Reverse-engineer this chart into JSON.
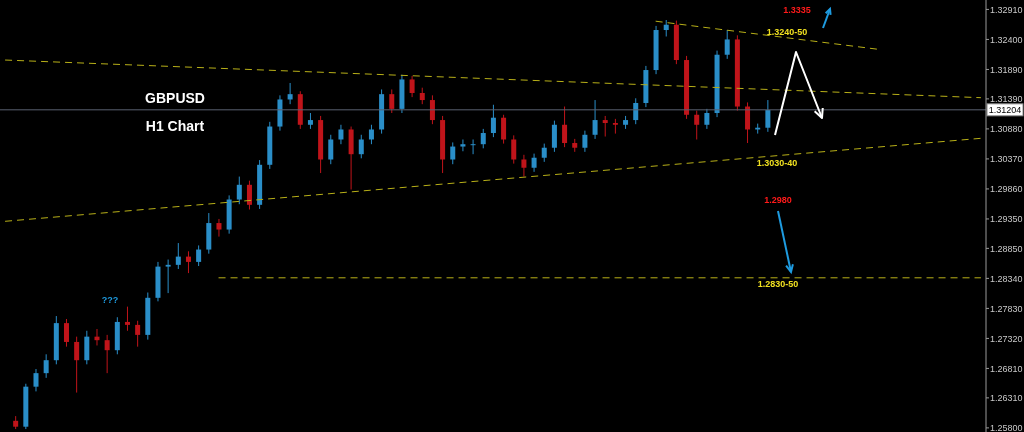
{
  "chart_data": {
    "type": "candlestick",
    "title": "GBPUSD",
    "subtitle": "H1 Chart",
    "categories": [
      null,
      null,
      null,
      null,
      null,
      null,
      null,
      null,
      null,
      null,
      null,
      null,
      null,
      null,
      null,
      null,
      null,
      null,
      null,
      null,
      null,
      null,
      null,
      null,
      null,
      null,
      null,
      null,
      null,
      null,
      null,
      null,
      null,
      null,
      null,
      null,
      null,
      null,
      null,
      null,
      null,
      null,
      null,
      null,
      null,
      null,
      null,
      null,
      null,
      null,
      null,
      null,
      null,
      null,
      null,
      null,
      null,
      null,
      null,
      null,
      null,
      null,
      null,
      null,
      null,
      null,
      null,
      null,
      null,
      null,
      null,
      null,
      null,
      null,
      null,
      null,
      null,
      null,
      null,
      null,
      null,
      null,
      null,
      null,
      null,
      null,
      null,
      null,
      null,
      null,
      null,
      null,
      null,
      null,
      null,
      null,
      null
    ],
    "ohlc": [
      null,
      [
        1.2592,
        1.26,
        1.2578,
        1.2582
      ],
      [
        1.2582,
        1.2655,
        1.2578,
        1.265
      ],
      [
        1.265,
        1.268,
        1.2642,
        1.2673
      ],
      [
        1.2673,
        1.2705,
        1.2665,
        1.2695
      ],
      [
        1.2695,
        1.277,
        1.2688,
        1.2758
      ],
      [
        1.2758,
        1.2765,
        1.2718,
        1.2726
      ],
      [
        1.2726,
        1.2735,
        1.264,
        1.2695
      ],
      [
        1.2695,
        1.2745,
        1.2688,
        1.2735
      ],
      [
        1.2735,
        1.2748,
        1.272,
        1.2729
      ],
      [
        1.2729,
        1.2738,
        1.2673,
        1.2712
      ],
      [
        1.2712,
        1.2768,
        1.2705,
        1.276
      ],
      [
        1.276,
        1.2786,
        1.2745,
        1.2755
      ],
      [
        1.2755,
        1.2762,
        1.2718,
        1.2738
      ],
      [
        1.2738,
        1.281,
        1.273,
        1.2801
      ],
      [
        1.2801,
        1.2862,
        1.2795,
        1.2854
      ],
      [
        1.2854,
        1.2866,
        1.2809,
        1.2857
      ],
      [
        1.2857,
        1.2894,
        1.285,
        1.2871
      ],
      [
        1.2871,
        1.288,
        1.2843,
        1.2862
      ],
      [
        1.2862,
        1.289,
        1.2855,
        1.2883
      ],
      [
        1.2883,
        1.2945,
        1.2876,
        1.2928
      ],
      [
        1.2928,
        1.2935,
        1.2905,
        1.2917
      ],
      [
        1.2917,
        1.2975,
        1.291,
        1.2968
      ],
      [
        1.2968,
        1.3007,
        1.296,
        1.2993
      ],
      [
        1.2993,
        1.3,
        1.2951,
        1.2959
      ],
      [
        1.2959,
        1.3035,
        1.2952,
        1.3027
      ],
      [
        1.3027,
        1.31,
        1.302,
        1.3092
      ],
      [
        1.3092,
        1.3145,
        1.3085,
        1.3138
      ],
      [
        1.3138,
        1.3166,
        1.313,
        1.3147
      ],
      [
        1.3147,
        1.3152,
        1.3088,
        1.3095
      ],
      [
        1.3095,
        1.3115,
        1.3088,
        1.3103
      ],
      [
        1.3103,
        1.311,
        1.3013,
        1.3036
      ],
      [
        1.3036,
        1.3078,
        1.3028,
        1.307
      ],
      [
        1.307,
        1.3095,
        1.3062,
        1.3087
      ],
      [
        1.3087,
        1.3092,
        1.2985,
        1.3045
      ],
      [
        1.3045,
        1.3078,
        1.3038,
        1.307
      ],
      [
        1.307,
        1.3095,
        1.3062,
        1.3087
      ],
      [
        1.3087,
        1.3155,
        1.308,
        1.3147
      ],
      [
        1.3147,
        1.3155,
        1.3115,
        1.3122
      ],
      [
        1.3122,
        1.318,
        1.3115,
        1.3172
      ],
      [
        1.3172,
        1.3178,
        1.3142,
        1.3149
      ],
      [
        1.3149,
        1.3158,
        1.313,
        1.3137
      ],
      [
        1.3137,
        1.3145,
        1.3096,
        1.3103
      ],
      [
        1.3103,
        1.311,
        1.3013,
        1.3036
      ],
      [
        1.3036,
        1.3065,
        1.3028,
        1.3058
      ],
      [
        1.3058,
        1.307,
        1.305,
        1.3062
      ],
      [
        1.3062,
        1.307,
        1.3045,
        1.3062
      ],
      [
        1.3062,
        1.3088,
        1.3055,
        1.3081
      ],
      [
        1.3081,
        1.3129,
        1.3074,
        1.3107
      ],
      [
        1.3107,
        1.3112,
        1.3063,
        1.307
      ],
      [
        1.307,
        1.3077,
        1.3029,
        1.3036
      ],
      [
        1.3036,
        1.3044,
        1.3007,
        1.3022
      ],
      [
        1.3022,
        1.3046,
        1.3015,
        1.3039
      ],
      [
        1.3039,
        1.3063,
        1.3032,
        1.3056
      ],
      [
        1.3056,
        1.3102,
        1.3049,
        1.3095
      ],
      [
        1.3095,
        1.3126,
        1.3057,
        1.3064
      ],
      [
        1.3064,
        1.3071,
        1.3049,
        1.3056
      ],
      [
        1.3056,
        1.3085,
        1.3049,
        1.3078
      ],
      [
        1.3078,
        1.3137,
        1.3071,
        1.3103
      ],
      [
        1.3103,
        1.311,
        1.3075,
        1.3098
      ],
      [
        1.3098,
        1.3105,
        1.308,
        1.3095
      ],
      [
        1.3095,
        1.311,
        1.3088,
        1.3103
      ],
      [
        1.3103,
        1.314,
        1.3096,
        1.3132
      ],
      [
        1.3132,
        1.3195,
        1.3125,
        1.3188
      ],
      [
        1.3188,
        1.3263,
        1.3181,
        1.3256
      ],
      [
        1.3256,
        1.3273,
        1.3245,
        1.3265
      ],
      [
        1.3265,
        1.3272,
        1.3198,
        1.3205
      ],
      [
        1.3205,
        1.3212,
        1.3105,
        1.3112
      ],
      [
        1.3112,
        1.3119,
        1.307,
        1.3095
      ],
      [
        1.3095,
        1.3122,
        1.3088,
        1.3115
      ],
      [
        1.3115,
        1.3221,
        1.3108,
        1.3214
      ],
      [
        1.3214,
        1.3256,
        1.3207,
        1.324
      ],
      [
        1.324,
        1.3247,
        1.3119,
        1.3126
      ],
      [
        1.3126,
        1.3133,
        1.3064,
        1.3087
      ],
      [
        1.3087,
        1.3097,
        1.308,
        1.309
      ],
      [
        1.309,
        1.3137,
        1.3083,
        1.312
      ],
      null,
      null,
      null,
      null,
      null,
      null,
      null,
      null,
      null,
      null,
      null,
      null,
      null,
      null,
      null,
      null,
      null,
      null,
      null,
      null,
      null
    ],
    "colors": [
      null,
      "#c0141a",
      "#2a8ec8",
      "#2a8ec8",
      "#2a8ec8",
      "#2a8ec8",
      "#c0141a",
      "#c0141a",
      "#2a8ec8",
      "#c0141a",
      "#c0141a",
      "#2a8ec8",
      "#c0141a",
      "#c0141a",
      "#2a8ec8",
      "#2a8ec8",
      "#2a8ec8",
      "#2a8ec8",
      "#c0141a",
      "#2a8ec8",
      "#2a8ec8",
      "#c0141a",
      "#2a8ec8",
      "#2a8ec8",
      "#c0141a",
      "#2a8ec8",
      "#2a8ec8",
      "#2a8ec8",
      "#2a8ec8",
      "#c0141a",
      "#2a8ec8",
      "#c0141a",
      "#2a8ec8",
      "#2a8ec8",
      "#c0141a",
      "#2a8ec8",
      "#2a8ec8",
      "#2a8ec8",
      "#c0141a",
      "#2a8ec8",
      "#c0141a",
      "#c0141a",
      "#c0141a",
      "#c0141a",
      "#2a8ec8",
      "#2a8ec8",
      "#2a8ec8",
      "#2a8ec8",
      "#2a8ec8",
      "#c0141a",
      "#c0141a",
      "#c0141a",
      "#2a8ec8",
      "#2a8ec8",
      "#2a8ec8",
      "#c0141a",
      "#c0141a",
      "#2a8ec8",
      "#2a8ec8",
      "#c0141a",
      "#c0141a",
      "#2a8ec8",
      "#2a8ec8",
      "#2a8ec8",
      "#2a8ec8",
      "#2a8ec8",
      "#c0141a",
      "#c0141a",
      "#c0141a",
      "#2a8ec8",
      "#2a8ec8",
      "#2a8ec8",
      "#c0141a",
      "#c0141a",
      "#2a8ec8",
      "#2a8ec8",
      null,
      null,
      null,
      null,
      null,
      null,
      null,
      null,
      null,
      null,
      null,
      null,
      null,
      null,
      null,
      null,
      null,
      null,
      null,
      null,
      null
    ],
    "series": [
      {
        "type": "line",
        "color": "#b8b018",
        "line_style": "dashed",
        "values": [
          1.3205,
          null,
          null,
          null,
          null,
          null,
          null,
          null,
          null,
          null,
          null,
          null,
          null,
          null,
          null,
          null,
          null,
          null,
          null,
          null,
          null,
          null,
          null,
          null,
          null,
          null,
          null,
          null,
          null,
          null,
          null,
          null,
          null,
          null,
          null,
          null,
          null,
          null,
          null,
          null,
          null,
          null,
          null,
          null,
          null,
          null,
          null,
          null,
          null,
          null,
          null,
          null,
          null,
          null,
          null,
          null,
          null,
          null,
          null,
          null,
          null,
          null,
          null,
          null,
          null,
          null,
          null,
          null,
          null,
          null,
          null,
          null,
          null,
          null,
          null,
          null,
          null,
          null,
          null,
          null,
          null,
          null,
          null,
          null,
          null,
          null,
          null,
          null,
          null,
          null,
          null,
          null,
          null,
          null,
          null,
          null,
          1.3141
        ]
      },
      {
        "type": "line",
        "color": "#b8b018",
        "line_style": "dashed",
        "values": [
          1.2931,
          null,
          null,
          null,
          null,
          null,
          null,
          null,
          null,
          null,
          null,
          null,
          null,
          null,
          null,
          null,
          null,
          null,
          null,
          null,
          null,
          null,
          null,
          null,
          null,
          null,
          null,
          null,
          null,
          null,
          null,
          null,
          null,
          null,
          null,
          null,
          null,
          null,
          null,
          null,
          null,
          null,
          null,
          null,
          null,
          null,
          null,
          null,
          null,
          null,
          null,
          null,
          null,
          null,
          null,
          null,
          null,
          null,
          null,
          null,
          null,
          null,
          null,
          null,
          null,
          null,
          null,
          null,
          null,
          null,
          null,
          null,
          null,
          null,
          null,
          null,
          null,
          null,
          null,
          null,
          null,
          null,
          null,
          null,
          null,
          null,
          null,
          null,
          null,
          null,
          null,
          null,
          null,
          null,
          null,
          null,
          1.3072
        ]
      },
      {
        "type": "line",
        "color": "#b8b018",
        "line_style": "dashed",
        "values": [
          null,
          null,
          null,
          null,
          null,
          null,
          null,
          null,
          null,
          null,
          null,
          null,
          null,
          null,
          null,
          null,
          null,
          null,
          null,
          null,
          null,
          1.2835,
          null,
          null,
          null,
          null,
          null,
          null,
          null,
          null,
          null,
          null,
          null,
          null,
          null,
          null,
          null,
          null,
          null,
          null,
          null,
          null,
          null,
          null,
          null,
          null,
          null,
          null,
          null,
          null,
          null,
          null,
          null,
          null,
          null,
          null,
          null,
          null,
          null,
          null,
          null,
          null,
          null,
          null,
          null,
          null,
          null,
          null,
          null,
          null,
          null,
          null,
          null,
          null,
          null,
          null,
          null,
          null,
          null,
          null,
          null,
          null,
          null,
          null,
          null,
          null,
          null,
          null,
          null,
          null,
          null,
          null,
          null,
          null,
          null,
          null,
          1.2835
        ]
      },
      {
        "type": "line",
        "color": "#b8b018",
        "line_style": "dashed",
        "values": [
          null,
          null,
          null,
          null,
          null,
          null,
          null,
          null,
          null,
          null,
          null,
          null,
          null,
          null,
          null,
          null,
          null,
          null,
          null,
          null,
          null,
          null,
          null,
          null,
          null,
          null,
          null,
          null,
          null,
          null,
          null,
          null,
          null,
          null,
          null,
          null,
          null,
          null,
          null,
          null,
          null,
          null,
          null,
          null,
          null,
          null,
          null,
          null,
          null,
          null,
          null,
          null,
          null,
          null,
          null,
          null,
          null,
          null,
          null,
          null,
          null,
          null,
          null,
          null,
          1.3271,
          null,
          null,
          null,
          null,
          null,
          null,
          null,
          null,
          null,
          null,
          null,
          null,
          null,
          null,
          null,
          null,
          null,
          null,
          null,
          null,
          null,
          1.3223,
          null,
          null,
          null,
          null,
          null,
          null,
          null,
          null,
          null,
          null
        ]
      }
    ],
    "ref_lines": [
      {
        "axis": "y",
        "value": 1.31204,
        "label": "1.31204",
        "color": "#5a6070"
      }
    ],
    "annotations": [
      "???",
      "1.3335",
      "1.3240-50",
      "1.3030-40",
      "1.2980",
      "1.2830-50"
    ],
    "ylim": [
      1.2573,
      1.3307
    ],
    "yticks": [
      {
        "value": 1.3291,
        "label": "1.32910"
      },
      {
        "value": 1.324,
        "label": "1.32400"
      },
      {
        "value": 1.3189,
        "label": "1.31890"
      },
      {
        "value": 1.3139,
        "label": "1.31390"
      },
      {
        "value": 1.3088,
        "label": "1.30880"
      },
      {
        "value": 1.3037,
        "label": "1.30370"
      },
      {
        "value": 1.2986,
        "label": "1.29860"
      },
      {
        "value": 1.2935,
        "label": "1.29350"
      },
      {
        "value": 1.2885,
        "label": "1.28850"
      },
      {
        "value": 1.2834,
        "label": "1.28340"
      },
      {
        "value": 1.2783,
        "label": "1.27830"
      },
      {
        "value": 1.2732,
        "label": "1.27320"
      },
      {
        "value": 1.2681,
        "label": "1.26810"
      },
      {
        "value": 1.2631,
        "label": "1.26310"
      },
      {
        "value": 1.258,
        "label": "1.25800"
      }
    ],
    "tick_labels": "y",
    "grid": false,
    "legend": false
  }
}
